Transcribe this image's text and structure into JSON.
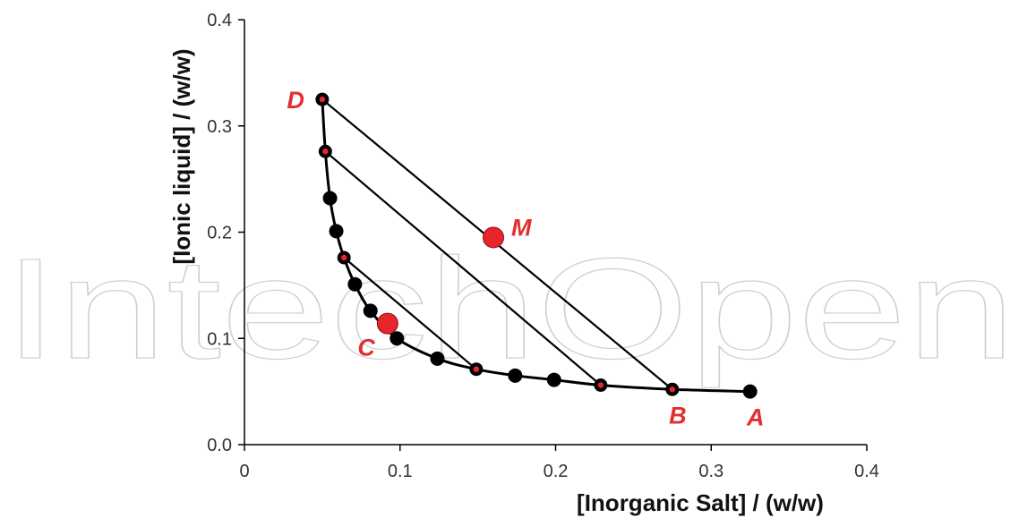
{
  "chart_data": {
    "type": "scatter",
    "title": "",
    "xlabel": "[Inorganic Salt] / (w/w)",
    "ylabel": "[Ionic liquid] / (w/w)",
    "xlim": [
      0,
      0.4
    ],
    "ylim": [
      0,
      0.4
    ],
    "x_ticks": [
      0,
      0.1,
      0.2,
      0.3,
      0.4
    ],
    "x_tick_labels": [
      "0",
      "0.1",
      "0.2",
      "0.3",
      "0.4"
    ],
    "y_ticks": [
      0,
      0.1,
      0.2,
      0.3,
      0.4
    ],
    "y_tick_labels": [
      "0.0",
      "0.1",
      "0.2",
      "0.3",
      "0.4"
    ],
    "grid": false,
    "binodal_curve": [
      {
        "x": 0.05,
        "y": 0.325
      },
      {
        "x": 0.052,
        "y": 0.276
      },
      {
        "x": 0.055,
        "y": 0.232
      },
      {
        "x": 0.059,
        "y": 0.201
      },
      {
        "x": 0.064,
        "y": 0.176
      },
      {
        "x": 0.071,
        "y": 0.151
      },
      {
        "x": 0.081,
        "y": 0.126
      },
      {
        "x": 0.098,
        "y": 0.1
      },
      {
        "x": 0.124,
        "y": 0.081
      },
      {
        "x": 0.149,
        "y": 0.071
      },
      {
        "x": 0.174,
        "y": 0.065
      },
      {
        "x": 0.199,
        "y": 0.061
      },
      {
        "x": 0.229,
        "y": 0.056
      },
      {
        "x": 0.275,
        "y": 0.052
      },
      {
        "x": 0.325,
        "y": 0.05
      }
    ],
    "binodal_markers": [
      {
        "x": 0.055,
        "y": 0.232
      },
      {
        "x": 0.059,
        "y": 0.201
      },
      {
        "x": 0.071,
        "y": 0.151
      },
      {
        "x": 0.081,
        "y": 0.126
      },
      {
        "x": 0.098,
        "y": 0.1
      },
      {
        "x": 0.124,
        "y": 0.081
      },
      {
        "x": 0.174,
        "y": 0.065
      },
      {
        "x": 0.199,
        "y": 0.061
      },
      {
        "x": 0.325,
        "y": 0.05
      }
    ],
    "tie_line_ends": [
      {
        "x": 0.05,
        "y": 0.325
      },
      {
        "x": 0.052,
        "y": 0.276
      },
      {
        "x": 0.064,
        "y": 0.176
      },
      {
        "x": 0.149,
        "y": 0.071
      },
      {
        "x": 0.229,
        "y": 0.056
      },
      {
        "x": 0.275,
        "y": 0.052
      }
    ],
    "tie_lines": [
      {
        "x1": 0.05,
        "y1": 0.325,
        "x2": 0.275,
        "y2": 0.052
      },
      {
        "x1": 0.052,
        "y1": 0.276,
        "x2": 0.229,
        "y2": 0.056
      },
      {
        "x1": 0.064,
        "y1": 0.176,
        "x2": 0.149,
        "y2": 0.071
      }
    ],
    "highlight_points": [
      {
        "label": "M",
        "x": 0.16,
        "y": 0.195
      },
      {
        "label": "C",
        "x": 0.092,
        "y": 0.114
      }
    ],
    "annotations": [
      {
        "text": "D",
        "x": 0.05,
        "y": 0.325,
        "pos": "left"
      },
      {
        "text": "M",
        "x": 0.16,
        "y": 0.195,
        "pos": "right"
      },
      {
        "text": "C",
        "x": 0.092,
        "y": 0.114,
        "pos": "below-left"
      },
      {
        "text": "B",
        "x": 0.275,
        "y": 0.052,
        "pos": "below"
      },
      {
        "text": "A",
        "x": 0.325,
        "y": 0.05,
        "pos": "below"
      }
    ],
    "colors": {
      "curve": "#000000",
      "marker": "#000000",
      "highlight": "#e8252b",
      "label": "#e03030"
    }
  },
  "watermark": "IntechOpen"
}
